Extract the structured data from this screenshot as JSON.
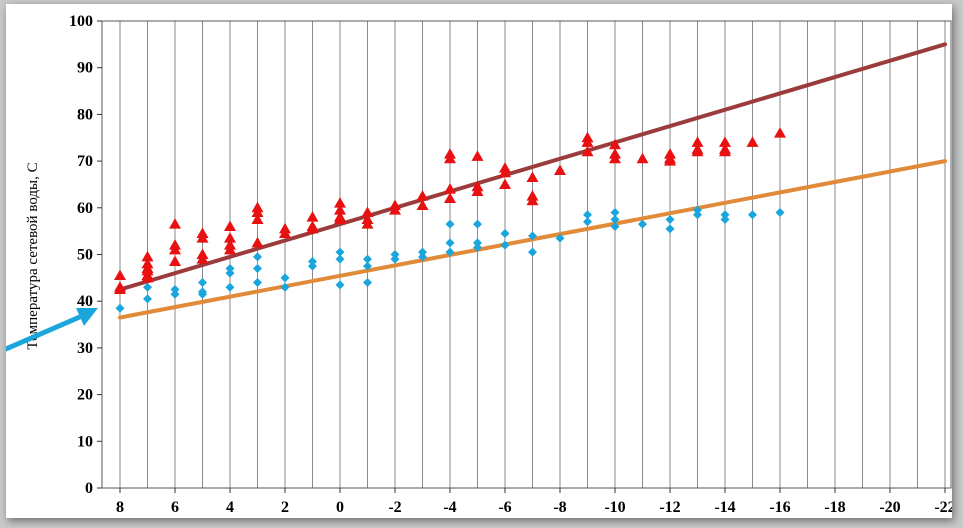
{
  "colors": {
    "heating_supply_line": "#9b3b3b",
    "heating_return_line": "#e08a3a",
    "supply_points": "#e81010",
    "return_points": "#1aa6dd",
    "pointer_arrow": "#1aa6dd",
    "grid": "#8a8a8a"
  },
  "chart_data": {
    "type": "scatter",
    "title": "",
    "xlabel": "",
    "ylabel": "Температура сетевой воды, С",
    "x_direction": "descending",
    "xlim": [
      8.5,
      -22.5
    ],
    "ylim": [
      0,
      100
    ],
    "x_ticks": [
      "8",
      "6",
      "4",
      "2",
      "0",
      "-2",
      "-4",
      "-6",
      "-8",
      "-10",
      "-12",
      "-14",
      "-16",
      "-18",
      "-20",
      "-22"
    ],
    "y_ticks": [
      "0",
      "10",
      "20",
      "30",
      "40",
      "50",
      "60",
      "70",
      "80",
      "90",
      "100"
    ],
    "grid": "vertical-every-1",
    "legend": "none",
    "series": [
      {
        "marker": "line",
        "color": "#9b3b3b",
        "points": [
          [
            8,
            42.5
          ],
          [
            -22,
            95
          ]
        ]
      },
      {
        "marker": "line",
        "color": "#e08a3a",
        "points": [
          [
            8,
            36.5
          ],
          [
            -22,
            70
          ]
        ]
      },
      {
        "marker": "triangle",
        "color": "#e81010",
        "points": [
          [
            8,
            45.5
          ],
          [
            8,
            43
          ],
          [
            8,
            42.5
          ],
          [
            7,
            49.5
          ],
          [
            7,
            48
          ],
          [
            7,
            47
          ],
          [
            7,
            46.5
          ],
          [
            7,
            45.5
          ],
          [
            7,
            45
          ],
          [
            6,
            56.5
          ],
          [
            6,
            52
          ],
          [
            6,
            51
          ],
          [
            6,
            48.5
          ],
          [
            5,
            54.5
          ],
          [
            5,
            53.5
          ],
          [
            5,
            50
          ],
          [
            5,
            49
          ],
          [
            4,
            56
          ],
          [
            4,
            53.5
          ],
          [
            4,
            52
          ],
          [
            4,
            51
          ],
          [
            3,
            60
          ],
          [
            3,
            59
          ],
          [
            3,
            57.5
          ],
          [
            3,
            52.5
          ],
          [
            2,
            55.5
          ],
          [
            2,
            54.5
          ],
          [
            1,
            58
          ],
          [
            1,
            56
          ],
          [
            1,
            55.5
          ],
          [
            0,
            61
          ],
          [
            0,
            59.5
          ],
          [
            0,
            58
          ],
          [
            0,
            57.5
          ],
          [
            -1,
            59
          ],
          [
            -1,
            57.5
          ],
          [
            -1,
            56.5
          ],
          [
            -2,
            60.5
          ],
          [
            -2,
            59.5
          ],
          [
            -3,
            62.5
          ],
          [
            -3,
            60.5
          ],
          [
            -4,
            71.5
          ],
          [
            -4,
            70.5
          ],
          [
            -4,
            64
          ],
          [
            -4,
            62
          ],
          [
            -5,
            71
          ],
          [
            -5,
            64.5
          ],
          [
            -5,
            63.5
          ],
          [
            -6,
            68.5
          ],
          [
            -6,
            67.5
          ],
          [
            -6,
            65
          ],
          [
            -7,
            66.5
          ],
          [
            -7,
            62.5
          ],
          [
            -7,
            61.5
          ],
          [
            -8,
            68
          ],
          [
            -9,
            75
          ],
          [
            -9,
            74
          ],
          [
            -9,
            72
          ],
          [
            -10,
            73.5
          ],
          [
            -10,
            71.5
          ],
          [
            -10,
            70.5
          ],
          [
            -11,
            70.5
          ],
          [
            -12,
            71.5
          ],
          [
            -12,
            70.5
          ],
          [
            -12,
            70
          ],
          [
            -13,
            74
          ],
          [
            -13,
            72.5
          ],
          [
            -13,
            72
          ],
          [
            -14,
            74
          ],
          [
            -14,
            72.5
          ],
          [
            -14,
            72
          ],
          [
            -15,
            74
          ],
          [
            -16,
            76
          ]
        ]
      },
      {
        "marker": "diamond",
        "color": "#1aa6dd",
        "points": [
          [
            8,
            38.5
          ],
          [
            7,
            43
          ],
          [
            7,
            40.5
          ],
          [
            6,
            42.5
          ],
          [
            6,
            41.5
          ],
          [
            5,
            44
          ],
          [
            5,
            42
          ],
          [
            5,
            41.5
          ],
          [
            4,
            47
          ],
          [
            4,
            46
          ],
          [
            4,
            43
          ],
          [
            3,
            49.5
          ],
          [
            3,
            47
          ],
          [
            3,
            44
          ],
          [
            2,
            45
          ],
          [
            2,
            43
          ],
          [
            1,
            48.5
          ],
          [
            1,
            47.5
          ],
          [
            0,
            50.5
          ],
          [
            0,
            49
          ],
          [
            0,
            43.5
          ],
          [
            -1,
            49
          ],
          [
            -1,
            47.5
          ],
          [
            -1,
            44
          ],
          [
            -2,
            50
          ],
          [
            -2,
            49
          ],
          [
            -3,
            50.5
          ],
          [
            -3,
            49.5
          ],
          [
            -4,
            56.5
          ],
          [
            -4,
            52.5
          ],
          [
            -4,
            50.5
          ],
          [
            -5,
            56.5
          ],
          [
            -5,
            52.5
          ],
          [
            -5,
            51.5
          ],
          [
            -6,
            54.5
          ],
          [
            -6,
            52
          ],
          [
            -7,
            54
          ],
          [
            -7,
            50.5
          ],
          [
            -8,
            53.5
          ],
          [
            -9,
            58.5
          ],
          [
            -9,
            57
          ],
          [
            -10,
            59
          ],
          [
            -10,
            57.5
          ],
          [
            -10,
            56
          ],
          [
            -11,
            56.5
          ],
          [
            -12,
            57.5
          ],
          [
            -12,
            55.5
          ],
          [
            -13,
            59.5
          ],
          [
            -13,
            58.5
          ],
          [
            -14,
            58.5
          ],
          [
            -14,
            57.5
          ],
          [
            -15,
            58.5
          ],
          [
            -16,
            59
          ]
        ]
      }
    ]
  }
}
